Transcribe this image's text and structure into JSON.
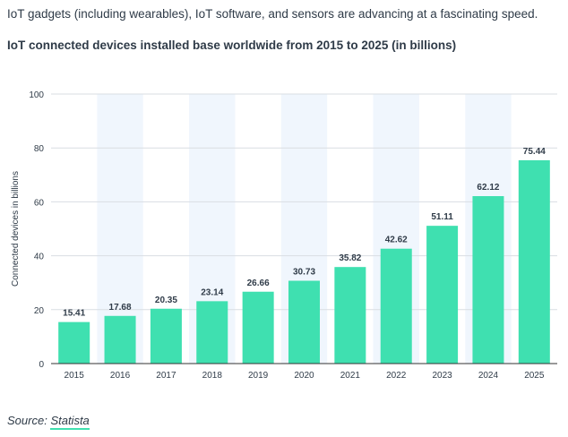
{
  "intro_text": "IoT gadgets (including wearables), IoT software, and sensors are advancing at a fascinating speed.",
  "chart_heading": "IoT connected devices installed base worldwide from 2015 to 2025 (in billions)",
  "source": {
    "label": "Source:",
    "link_text": "Statista"
  },
  "colors": {
    "bar": "#3fe0b0",
    "band": "#f0f6fd",
    "grid": "#d9dde2",
    "axis": "#333333",
    "text": "#2f3b48",
    "accent_underline": "#40e0b0"
  },
  "chart_data": {
    "type": "bar",
    "title": "IoT connected devices installed base worldwide from 2015 to 2025 (in billions)",
    "xlabel": "",
    "ylabel": "Connected devices in billions",
    "categories": [
      "2015",
      "2016",
      "2017",
      "2018",
      "2019",
      "2020",
      "2021",
      "2022",
      "2023",
      "2024",
      "2025"
    ],
    "values": [
      15.41,
      17.68,
      20.35,
      23.14,
      26.66,
      30.73,
      35.82,
      42.62,
      51.11,
      62.12,
      75.44
    ],
    "value_labels": [
      "15.41",
      "17.68",
      "20.35",
      "23.14",
      "26.66",
      "30.73",
      "35.82",
      "42.62",
      "51.11",
      "62.12",
      "75.44"
    ],
    "ylim": [
      0,
      100
    ],
    "yticks": [
      0,
      20,
      40,
      60,
      80,
      100
    ],
    "ytick_labels": [
      "0",
      "20",
      "40",
      "60",
      "80",
      "100"
    ],
    "grid": true,
    "alternating_bands": true
  }
}
